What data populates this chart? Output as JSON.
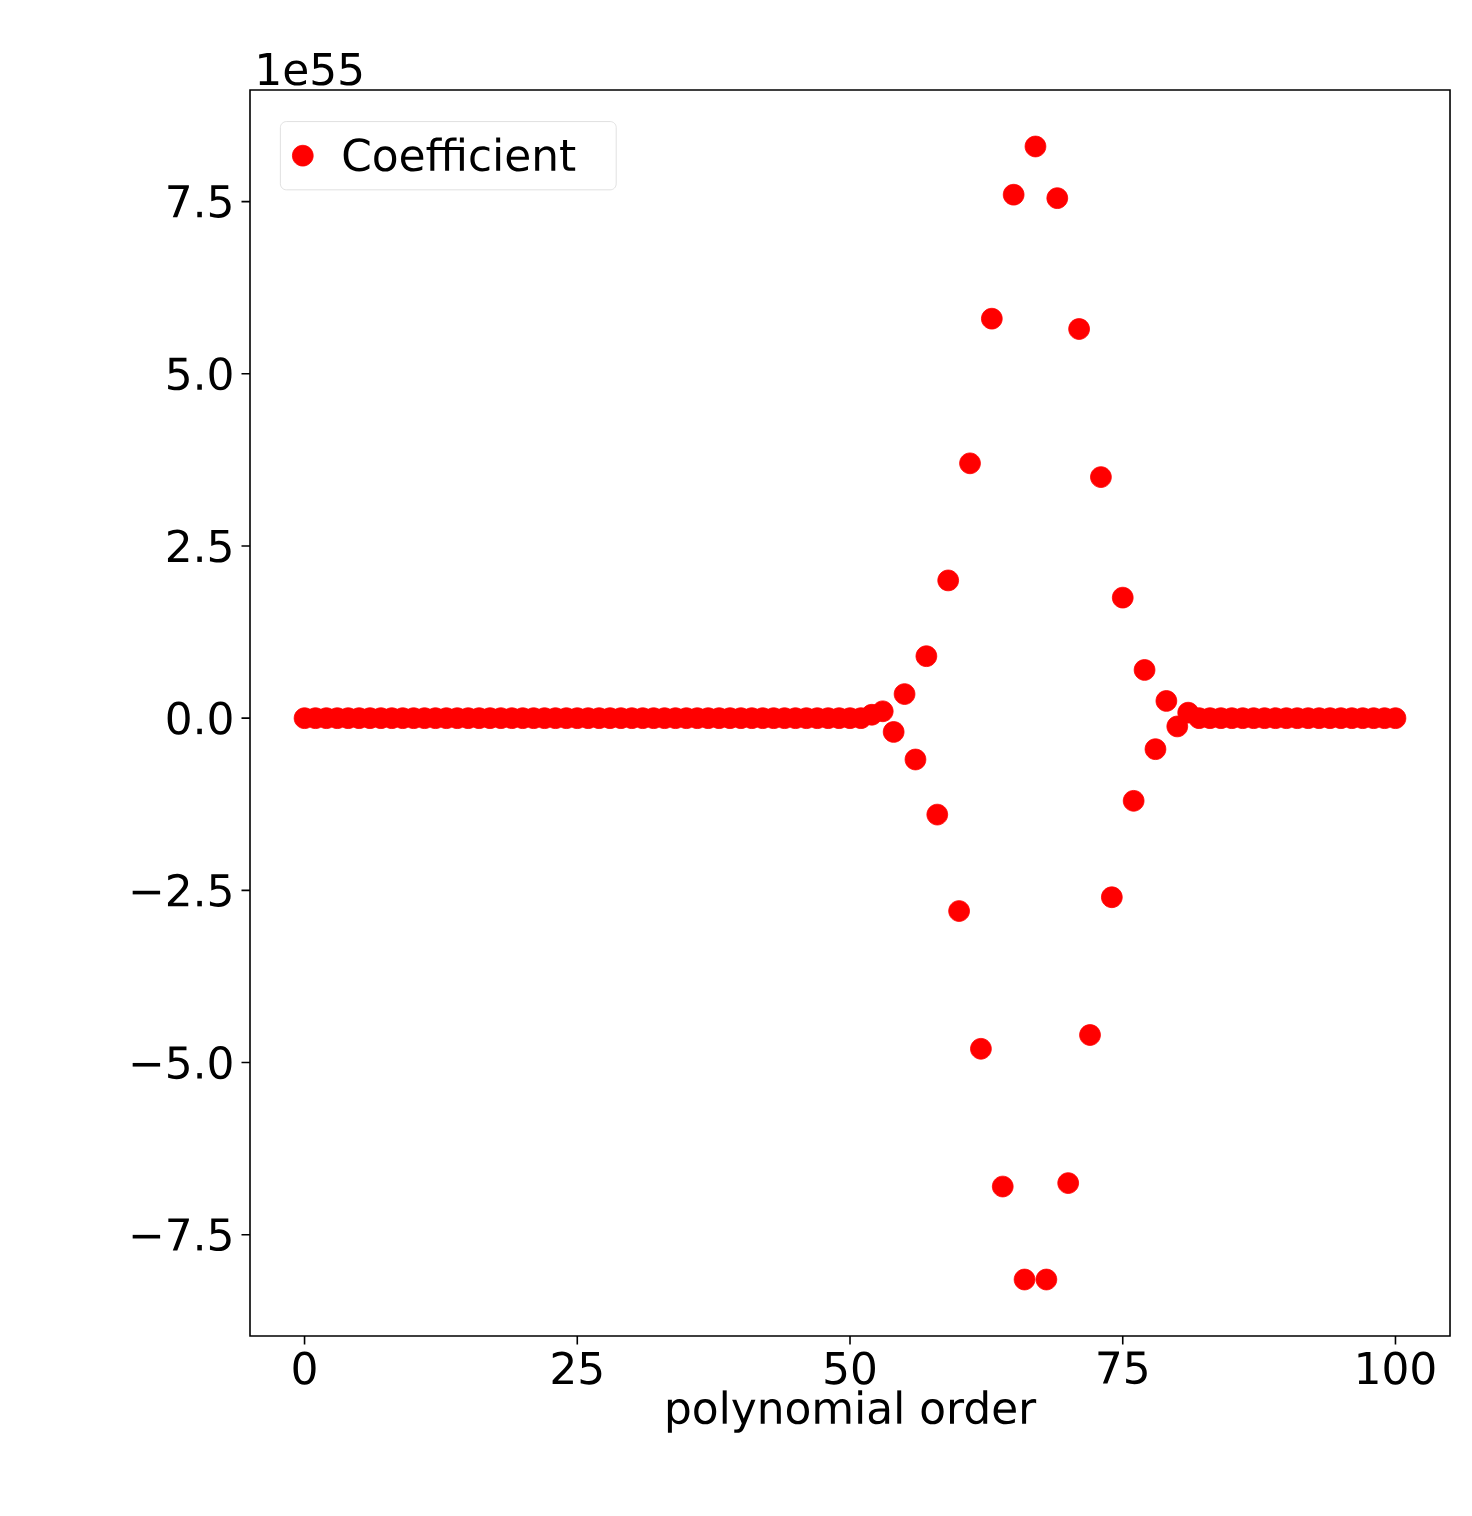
{
  "chart_data": {
    "type": "scatter",
    "xlabel": "polynomial order",
    "annotations": [
      "1e55"
    ],
    "x": [
      0,
      1,
      2,
      3,
      4,
      5,
      6,
      7,
      8,
      9,
      10,
      11,
      12,
      13,
      14,
      15,
      16,
      17,
      18,
      19,
      20,
      21,
      22,
      23,
      24,
      25,
      26,
      27,
      28,
      29,
      30,
      31,
      32,
      33,
      34,
      35,
      36,
      37,
      38,
      39,
      40,
      41,
      42,
      43,
      44,
      45,
      46,
      47,
      48,
      49,
      50,
      51,
      52,
      53,
      54,
      55,
      56,
      57,
      58,
      59,
      60,
      61,
      62,
      63,
      64,
      65,
      66,
      67,
      68,
      69,
      70,
      71,
      72,
      73,
      74,
      75,
      76,
      77,
      78,
      79,
      80,
      81,
      82,
      83,
      84,
      85,
      86,
      87,
      88,
      89,
      90,
      91,
      92,
      93,
      94,
      95,
      96,
      97,
      98,
      99,
      100
    ],
    "series": [
      {
        "name": "Coefficient",
        "color": "#ff0000",
        "values": [
          0,
          0,
          0,
          0,
          0,
          0,
          0,
          0,
          0,
          0,
          0,
          0,
          0,
          0,
          0,
          0,
          0,
          0,
          0,
          0,
          0,
          0,
          0,
          0,
          0,
          0,
          0,
          0,
          0,
          0,
          0,
          0,
          0,
          0,
          0,
          0,
          0,
          0,
          0,
          0,
          0,
          0,
          0,
          0,
          0,
          0,
          0,
          0,
          0,
          0,
          0,
          0,
          0.05,
          0.1,
          -0.2,
          0.35,
          -0.6,
          0.9,
          -1.4,
          2.0,
          -2.8,
          3.7,
          -4.8,
          5.8,
          -6.8,
          7.6,
          -8.15,
          8.3,
          -8.15,
          7.55,
          -6.75,
          5.65,
          -4.6,
          3.5,
          -2.6,
          1.75,
          -1.2,
          0.7,
          -0.45,
          0.25,
          -0.12,
          0.08,
          0,
          0,
          0,
          0,
          0,
          0,
          0,
          0,
          0,
          0,
          0,
          0,
          0,
          0,
          0,
          0,
          0,
          0,
          0
        ]
      }
    ],
    "xlim": [
      -5,
      105
    ],
    "ylim": [
      -8.97,
      9.12
    ],
    "xticks": [
      0,
      25,
      50,
      75,
      100
    ],
    "yticks": [
      {
        "value": -7.5,
        "label": "−7.5"
      },
      {
        "value": -5.0,
        "label": "−5.0"
      },
      {
        "value": -2.5,
        "label": "−2.5"
      },
      {
        "value": 0.0,
        "label": "0.0"
      },
      {
        "value": 2.5,
        "label": "2.5"
      },
      {
        "value": 5.0,
        "label": "5.0"
      },
      {
        "value": 7.5,
        "label": "7.5"
      }
    ],
    "legend": "top left",
    "marker": "circle",
    "grid": false
  }
}
